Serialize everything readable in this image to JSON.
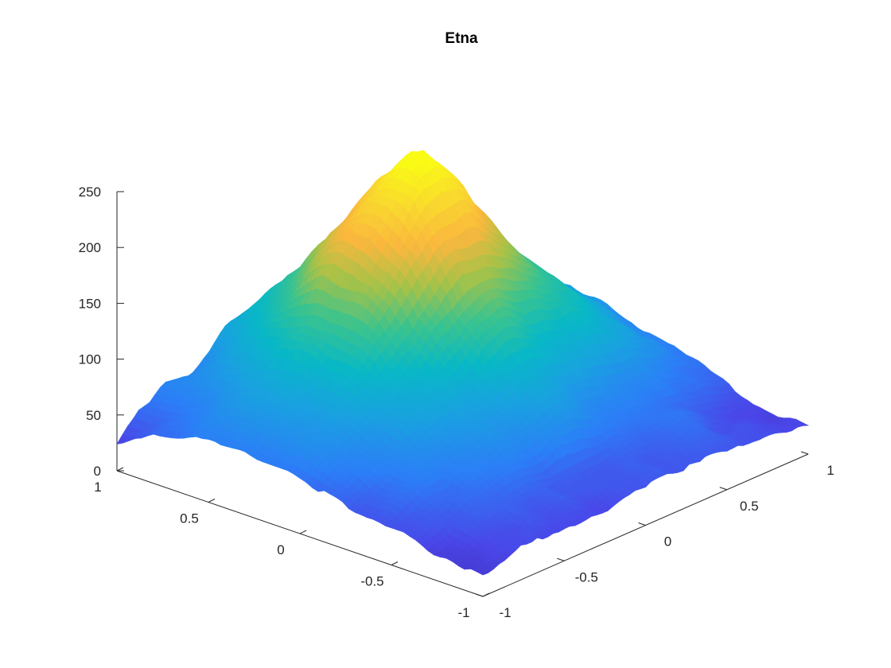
{
  "chart_data": {
    "type": "surface",
    "title": "Etna",
    "xlabel": "",
    "ylabel": "",
    "zlabel": "",
    "xlim": [
      -1,
      1
    ],
    "ylim": [
      -1,
      1
    ],
    "zlim": [
      0,
      250
    ],
    "x_ticks": [
      "-1",
      "-0.5",
      "0",
      "0.5",
      "1"
    ],
    "y_ticks": [
      "-1",
      "-0.5",
      "0",
      "0.5",
      "1"
    ],
    "z_ticks": [
      "0",
      "50",
      "100",
      "150",
      "200",
      "250"
    ],
    "surface": {
      "description": "volcano elevation surface",
      "peak": {
        "x": 0.1,
        "y": 0.35,
        "z": 260
      },
      "base_level": 15,
      "colormap": "parula",
      "colormap_stops": [
        "#3e26a8",
        "#4a46e8",
        "#2c7ef7",
        "#1aa0e1",
        "#08b8c6",
        "#3bc38e",
        "#a6c248",
        "#fab73e",
        "#f9d92e",
        "#f9fb15"
      ]
    },
    "grid": false
  }
}
